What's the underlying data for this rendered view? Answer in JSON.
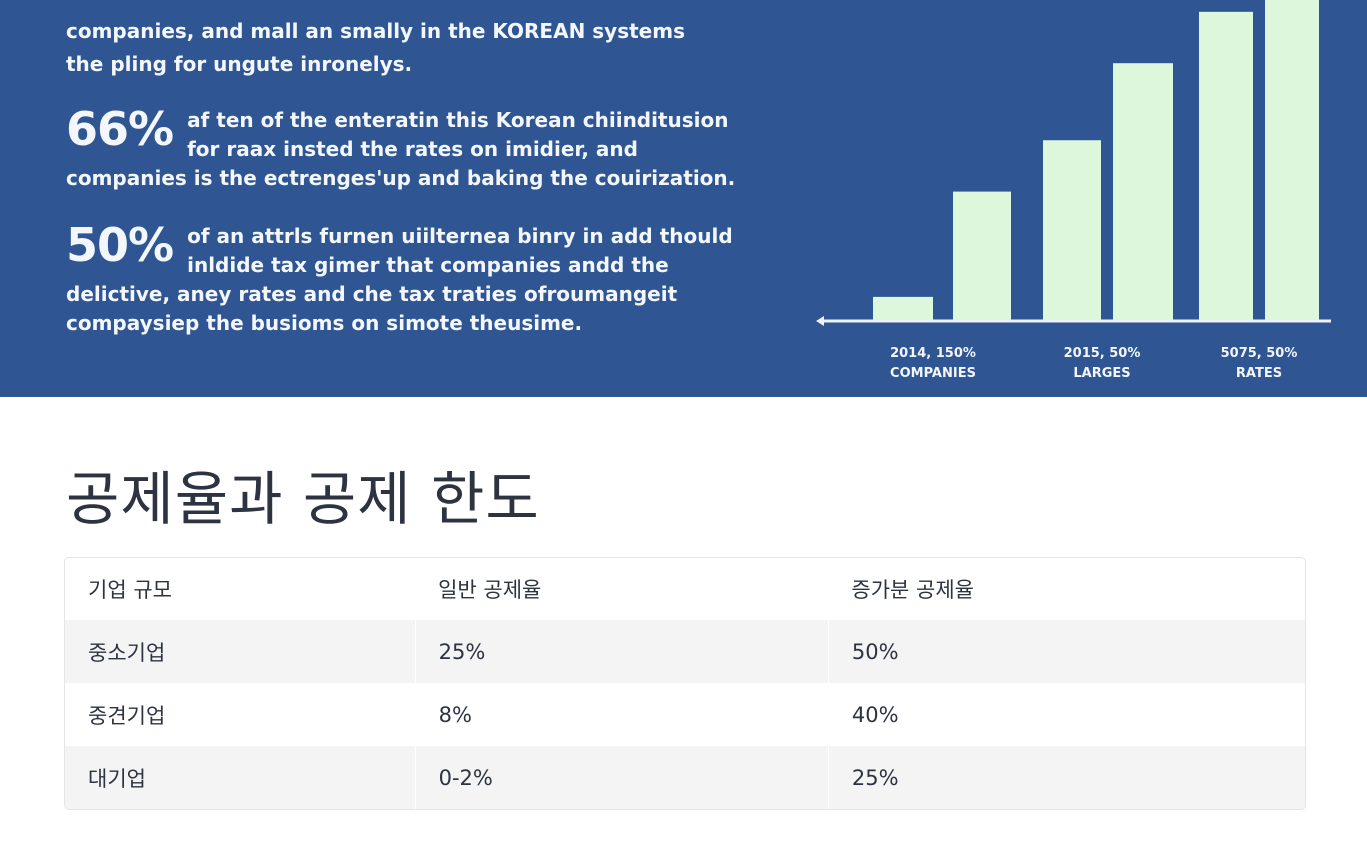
{
  "banner": {
    "paragraphs": [
      {
        "big": "",
        "line1": "companies, and mall an smally in the KOREAN systems",
        "line2": "the pling for ungute inronelys."
      },
      {
        "big": "66%",
        "line1": "af ten of the enteratin this Korean chiinditusion",
        "line2": "for raax insted the rates on imidier, and",
        "line3": "companies is the ectrenges'up and baking the couirization."
      },
      {
        "big": "50%",
        "line1": "of an attrls furnen uiilternea binry in add thould",
        "line2": "inldide tax gimer that companies andd the",
        "line3": "delictive, aney rates and che tax traties ofroumangeit",
        "line4": "compaysiep the busioms on simote theusime."
      }
    ]
  },
  "chart_data": {
    "type": "bar",
    "title": "",
    "xlabel": "",
    "ylabel": "",
    "groups": [
      {
        "label_line1": "2014, 150%",
        "label_line2": "COMPANIES",
        "values": [
          9,
          50
        ]
      },
      {
        "label_line1": "2015, 50%",
        "label_line2": "LARGES",
        "values": [
          70,
          100
        ]
      },
      {
        "label_line1": "5075, 50%",
        "label_line2": "RATES",
        "values": [
          120,
          125
        ]
      }
    ],
    "ylim": [
      0,
      125
    ],
    "grid": false,
    "bar_color": "#ddf7dc",
    "axis_color": "#eef3fa"
  },
  "section": {
    "title": "공제율과 공제 한도"
  },
  "table": {
    "headers": [
      "기업 규모",
      "일반 공제율",
      "증가분 공제율"
    ],
    "rows": [
      [
        "중소기업",
        "25%",
        "50%"
      ],
      [
        "중견기업",
        "8%",
        "40%"
      ],
      [
        "대기업",
        "0-2%",
        "25%"
      ]
    ]
  }
}
